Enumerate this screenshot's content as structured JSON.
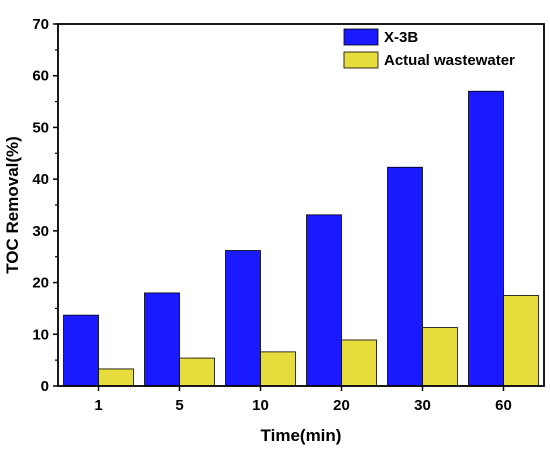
{
  "chart_data": {
    "type": "bar",
    "title": "",
    "xlabel": "Time(min)",
    "ylabel": "TOC Removal(%)",
    "categories": [
      "1",
      "5",
      "10",
      "20",
      "30",
      "60"
    ],
    "series": [
      {
        "name": "X-3B",
        "color": "#1a1aff",
        "values": [
          13.7,
          18.0,
          26.2,
          33.1,
          42.3,
          57.0
        ]
      },
      {
        "name": "Actual wastewater",
        "color": "#e6dc3c",
        "values": [
          3.3,
          5.4,
          6.6,
          8.9,
          11.3,
          17.5
        ]
      }
    ],
    "ylim": [
      0,
      70
    ],
    "yticks": [
      "0",
      "10",
      "20",
      "30",
      "40",
      "50",
      "60",
      "70"
    ],
    "grid": false,
    "legend_position": "top-right"
  }
}
